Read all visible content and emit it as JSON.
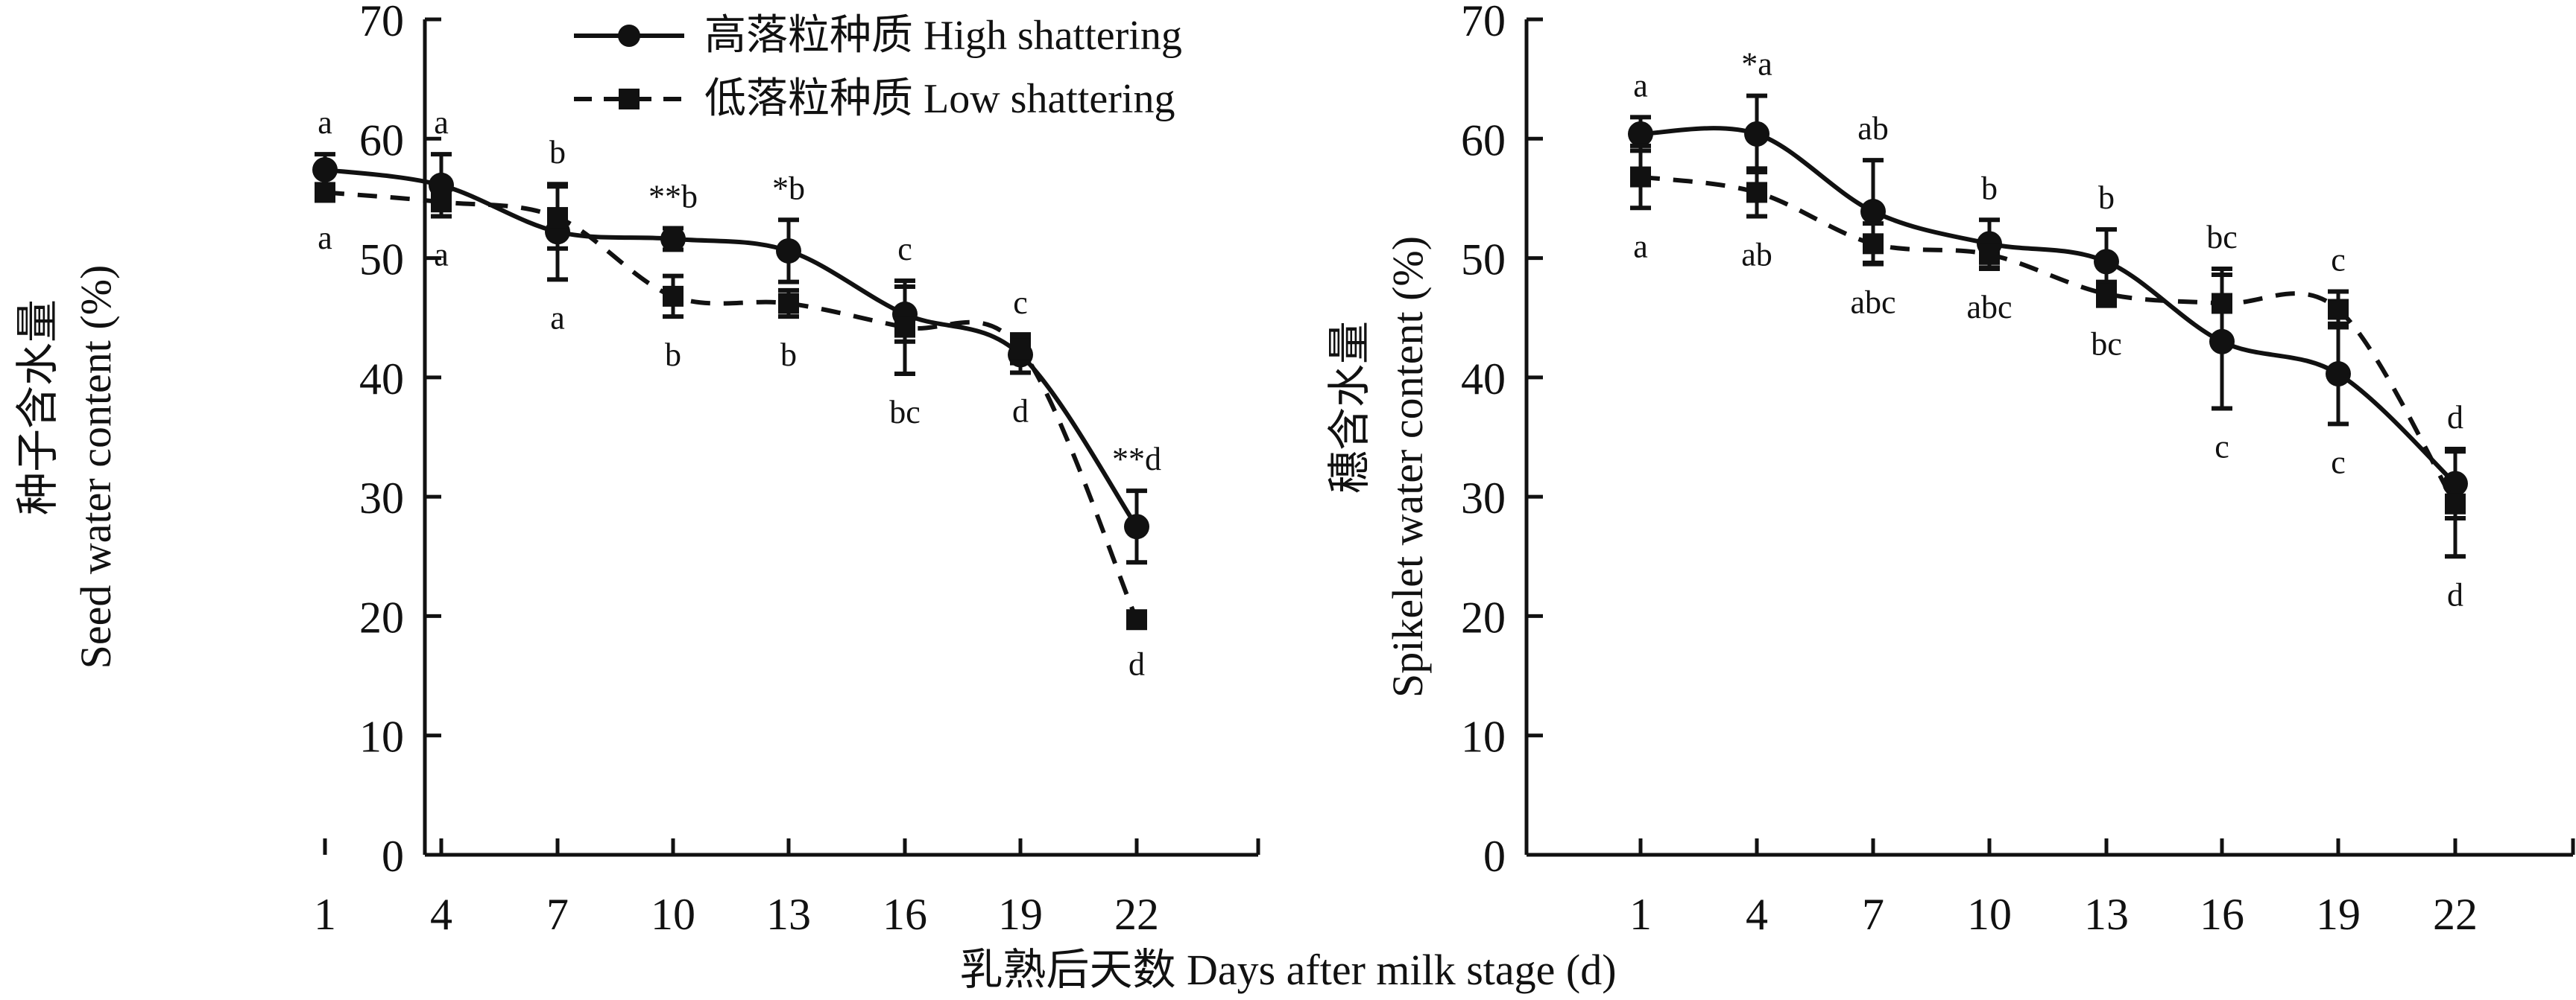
{
  "chart_data": [
    {
      "type": "line",
      "panel": "left",
      "ylabel_cn": "种子含水量",
      "ylabel": "Seed water content (%)",
      "xlabel": "乳熟后天数 Days after milk stage (d)",
      "x": [
        1,
        4,
        7,
        10,
        13,
        16,
        19,
        22
      ],
      "x_tick_labels": [
        "1",
        "4",
        "7",
        "10",
        "13",
        "16",
        "19",
        "22"
      ],
      "y_tick_labels": [
        "0",
        "10",
        "20",
        "30",
        "40",
        "50",
        "60",
        "70"
      ],
      "ylim": [
        0,
        70
      ],
      "xlim": [
        -1,
        26
      ],
      "grid": false,
      "legend": "top-right",
      "series": [
        {
          "name": "高落粒种质 High shattering",
          "line": "solid",
          "marker": "circle",
          "values": [
            57.4,
            56.1,
            52.2,
            51.6,
            50.6,
            45.3,
            41.9,
            27.5
          ],
          "error": [
            1.3,
            2.6,
            4.0,
            0.9,
            2.6,
            2.3,
            1.5,
            3.0
          ],
          "labels": [
            "a",
            "a",
            "a",
            "**b",
            "*b",
            "c",
            "c",
            "**d"
          ]
        },
        {
          "name": "低落粒种质 Low shattering",
          "line": "dashed",
          "marker": "square",
          "values": [
            55.5,
            54.7,
            53.4,
            46.8,
            46.2,
            44.2,
            42.4,
            19.7
          ],
          "error": [
            0.6,
            1.2,
            2.6,
            1.7,
            1.1,
            3.9,
            1.2,
            0.5
          ],
          "labels": [
            "a",
            "a",
            "b",
            "b",
            "b",
            "bc",
            "d",
            "d"
          ]
        }
      ]
    },
    {
      "type": "line",
      "panel": "right",
      "ylabel_cn": "穗含水量",
      "ylabel": "Spikelet water content (%)",
      "xlabel": "",
      "x": [
        1,
        4,
        7,
        10,
        13,
        16,
        19,
        22
      ],
      "x_tick_labels": [
        "1",
        "4",
        "7",
        "10",
        "13",
        "16",
        "19",
        "22"
      ],
      "y_tick_labels": [
        "0",
        "10",
        "20",
        "30",
        "40",
        "50",
        "60",
        "70"
      ],
      "ylim": [
        0,
        70
      ],
      "xlim": [
        -1,
        26
      ],
      "grid": false,
      "series": [
        {
          "name": "高落粒种质 High shattering",
          "line": "solid",
          "marker": "circle",
          "values": [
            60.4,
            60.4,
            53.9,
            51.2,
            49.7,
            43.0,
            40.3,
            31.1
          ],
          "error": [
            1.4,
            3.2,
            4.3,
            2.0,
            2.7,
            5.6,
            4.2,
            2.9
          ],
          "labels": [
            "a",
            "*a",
            "ab",
            "b",
            "b",
            "c",
            "c",
            "d"
          ]
        },
        {
          "name": "低落粒种质 Low shattering",
          "line": "dashed",
          "marker": "square",
          "values": [
            56.8,
            55.5,
            51.2,
            50.3,
            47.0,
            46.2,
            45.7,
            29.4
          ],
          "error": [
            2.6,
            2.0,
            1.7,
            1.2,
            1.0,
            2.9,
            1.5,
            4.4
          ],
          "labels": [
            "a",
            "ab",
            "abc",
            "abc",
            "bc",
            "bc",
            "c",
            "d"
          ]
        }
      ]
    }
  ],
  "legend": {
    "items": [
      {
        "label": "高落粒种质 High shattering",
        "line": "solid",
        "marker": "circle"
      },
      {
        "label": "低落粒种质 Low shattering",
        "line": "dashed",
        "marker": "square"
      }
    ]
  },
  "shared_xlabel": "乳熟后天数 Days after milk stage (d)",
  "colors": {
    "ink": "#111111",
    "background": "#ffffff"
  }
}
